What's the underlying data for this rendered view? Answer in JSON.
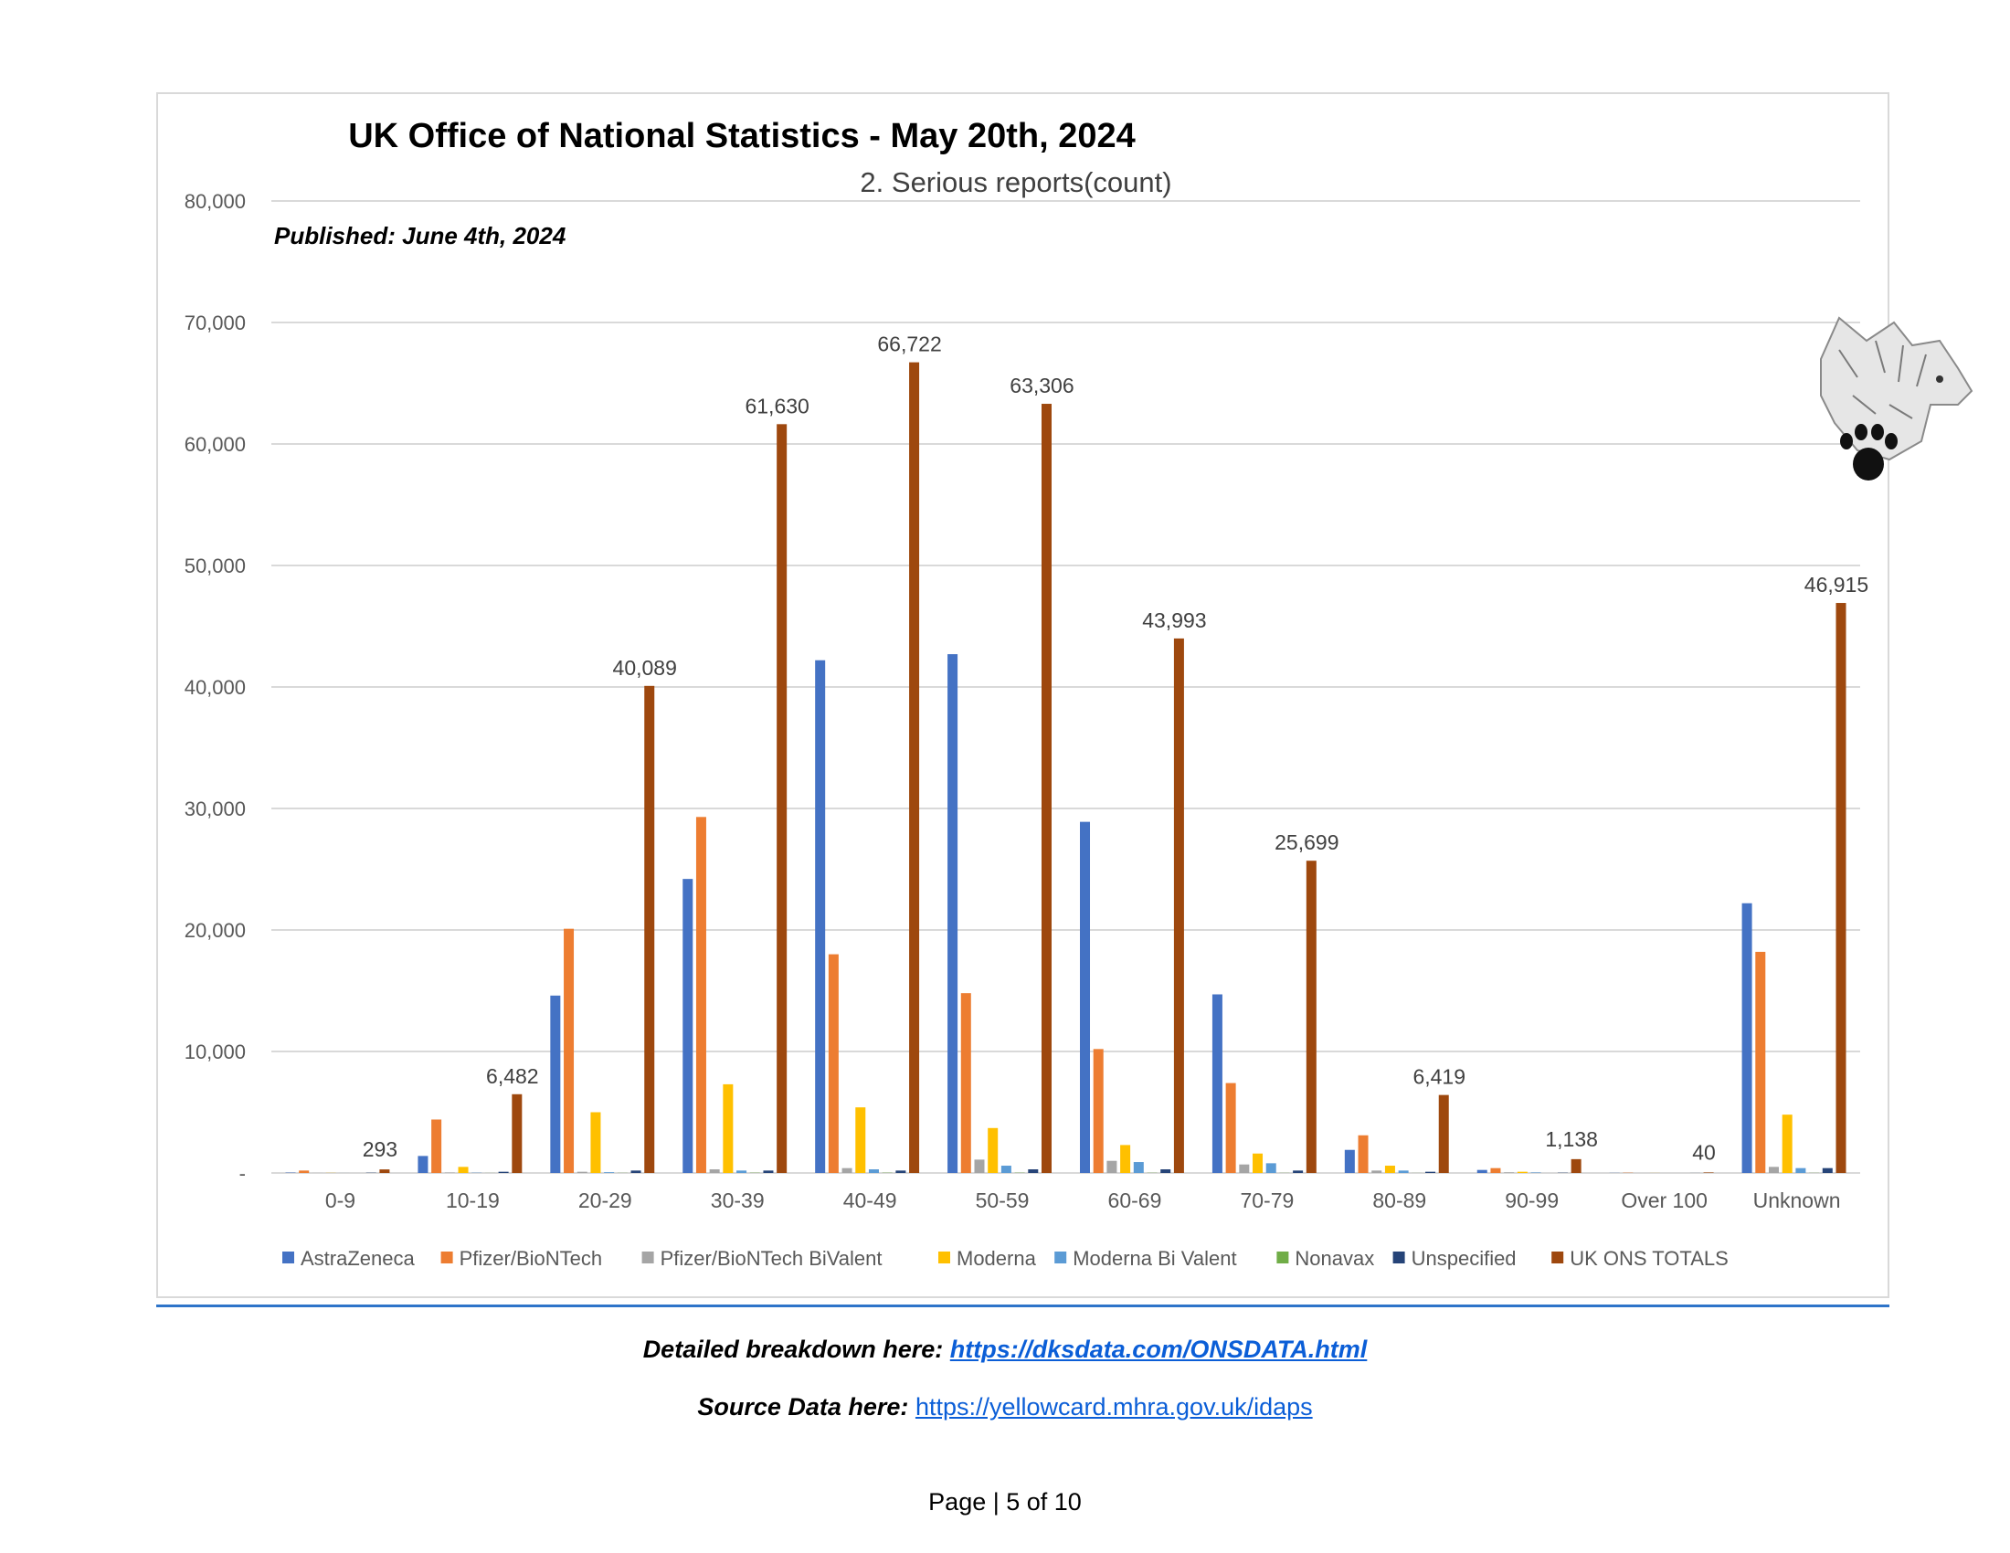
{
  "chart_data": {
    "type": "bar",
    "title": "UK Office of National Statistics - May 20th, 2024",
    "subtitle": "2. Serious reports(count)",
    "annotation": "Published: June 4th, 2024",
    "ylim": [
      0,
      80000
    ],
    "yticks": [
      "-",
      "10,000",
      "20,000",
      "30,000",
      "40,000",
      "50,000",
      "60,000",
      "70,000",
      "80,000"
    ],
    "grid": true,
    "legend_position": "bottom",
    "categories": [
      "0-9",
      "10-19",
      "20-29",
      "30-39",
      "40-49",
      "50-59",
      "60-69",
      "70-79",
      "80-89",
      "90-99",
      "Over 100",
      "Unknown"
    ],
    "series": [
      {
        "name": "AstraZeneca",
        "color": "#4472c4",
        "values": [
          30,
          1400,
          14600,
          24200,
          42200,
          42700,
          28900,
          14700,
          1900,
          250,
          10,
          22200
        ]
      },
      {
        "name": "Pfizer/BioNTech",
        "color": "#ed7d31",
        "values": [
          200,
          4400,
          20100,
          29300,
          18000,
          14800,
          10200,
          7400,
          3100,
          400,
          20,
          18200
        ]
      },
      {
        "name": "Pfizer/BioNTech BiValent",
        "color": "#a5a5a5",
        "values": [
          5,
          30,
          100,
          300,
          400,
          1100,
          1000,
          700,
          200,
          50,
          0,
          500
        ]
      },
      {
        "name": "Moderna",
        "color": "#ffc000",
        "values": [
          10,
          500,
          5000,
          7300,
          5400,
          3700,
          2300,
          1600,
          600,
          100,
          5,
          4800
        ]
      },
      {
        "name": "Moderna Bi Valent",
        "color": "#5b9bd5",
        "values": [
          2,
          20,
          60,
          200,
          300,
          600,
          900,
          800,
          200,
          40,
          0,
          400
        ]
      },
      {
        "name": "Nonavax",
        "color": "#70ad47",
        "values": [
          0,
          5,
          10,
          20,
          20,
          20,
          15,
          10,
          5,
          0,
          0,
          10
        ]
      },
      {
        "name": "Unspecified",
        "color": "#264478",
        "values": [
          20,
          100,
          200,
          200,
          200,
          300,
          300,
          200,
          100,
          20,
          5,
          400
        ]
      },
      {
        "name": "UK ONS TOTALS",
        "color": "#9e480e",
        "values": [
          293,
          6482,
          40089,
          61630,
          66722,
          63306,
          43993,
          25699,
          6419,
          1138,
          40,
          46915
        ]
      }
    ],
    "total_labels": [
      "293",
      "6,482",
      "40,089",
      "61,630",
      "66,722",
      "63,306",
      "43,993",
      "25,699",
      "6,419",
      "1,138",
      "40",
      "46,915"
    ]
  },
  "footer": {
    "detail_prefix": "Detailed breakdown here: ",
    "detail_link": "https://dksdata.com/ONSDATA.html",
    "source_prefix": "Source Data here: ",
    "source_link": "https://yellowcard.mhra.gov.uk/idaps",
    "page_label": "Page | 5 of 10"
  }
}
